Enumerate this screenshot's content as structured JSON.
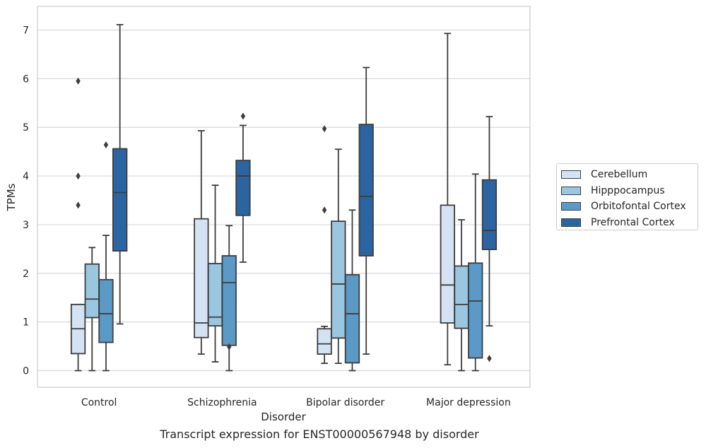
{
  "caption": "Transcript expression for ENST00000567948 by disorder",
  "chart_data": {
    "type": "boxplot",
    "xlabel": "Disorder",
    "ylabel": "TPMs",
    "ylim": [
      -0.35,
      7.5
    ],
    "yticks": [
      "0",
      "1",
      "2",
      "3",
      "4",
      "5",
      "6",
      "7"
    ],
    "grid": "horizontal",
    "legend_position": "right",
    "categories": [
      "Control",
      "Schizophrenia",
      "Bipolar disorder",
      "Major depression"
    ],
    "series": [
      {
        "name": "Cerebellum",
        "color": "#d3e3f3",
        "boxes": [
          {
            "whislo": 0.0,
            "q1": 0.35,
            "med": 0.86,
            "q3": 1.36,
            "whishi": 1.36,
            "fliers": [
              3.4,
              4.0,
              5.95
            ]
          },
          {
            "whislo": 0.34,
            "q1": 0.68,
            "med": 0.98,
            "q3": 3.12,
            "whishi": 4.93,
            "fliers": []
          },
          {
            "whislo": 0.15,
            "q1": 0.34,
            "med": 0.55,
            "q3": 0.86,
            "whishi": 0.91,
            "fliers": [
              3.3,
              4.97
            ]
          },
          {
            "whislo": 0.12,
            "q1": 0.98,
            "med": 1.76,
            "q3": 3.4,
            "whishi": 6.93,
            "fliers": []
          }
        ]
      },
      {
        "name": "Hipppocampus",
        "color": "#9ac7df",
        "boxes": [
          {
            "whislo": 0.0,
            "q1": 1.09,
            "med": 1.47,
            "q3": 2.19,
            "whishi": 2.53,
            "fliers": []
          },
          {
            "whislo": 0.18,
            "q1": 0.92,
            "med": 1.1,
            "q3": 2.2,
            "whishi": 3.81,
            "fliers": []
          },
          {
            "whislo": 0.15,
            "q1": 0.67,
            "med": 1.78,
            "q3": 3.07,
            "whishi": 4.55,
            "fliers": []
          },
          {
            "whislo": 0.0,
            "q1": 0.87,
            "med": 1.36,
            "q3": 2.15,
            "whishi": 3.1,
            "fliers": []
          }
        ]
      },
      {
        "name": "Orbitofontal Cortex",
        "color": "#5b9ac6",
        "boxes": [
          {
            "whislo": 0.0,
            "q1": 0.58,
            "med": 1.17,
            "q3": 1.87,
            "whishi": 2.78,
            "fliers": [
              4.64
            ]
          },
          {
            "whislo": 0.0,
            "q1": 0.52,
            "med": 1.81,
            "q3": 2.36,
            "whishi": 2.98,
            "fliers": [
              0.49
            ]
          },
          {
            "whislo": 0.0,
            "q1": 0.16,
            "med": 1.17,
            "q3": 1.97,
            "whishi": 3.3,
            "fliers": []
          },
          {
            "whislo": 0.0,
            "q1": 0.26,
            "med": 1.43,
            "q3": 2.21,
            "whishi": 4.04,
            "fliers": []
          }
        ]
      },
      {
        "name": "Prefrontal Cortex",
        "color": "#2a64a1",
        "boxes": [
          {
            "whislo": 0.96,
            "q1": 2.46,
            "med": 3.66,
            "q3": 4.56,
            "whishi": 7.11,
            "fliers": []
          },
          {
            "whislo": 2.23,
            "q1": 3.19,
            "med": 4.0,
            "q3": 4.32,
            "whishi": 5.04,
            "fliers": [
              5.23
            ]
          },
          {
            "whislo": 0.34,
            "q1": 2.36,
            "med": 3.58,
            "q3": 5.06,
            "whishi": 6.23,
            "fliers": []
          },
          {
            "whislo": 0.92,
            "q1": 2.49,
            "med": 2.88,
            "q3": 3.92,
            "whishi": 5.22,
            "fliers": [
              0.25
            ]
          }
        ]
      }
    ]
  }
}
